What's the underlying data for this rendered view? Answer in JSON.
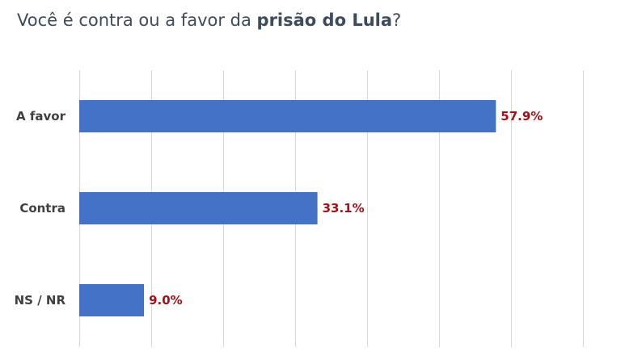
{
  "title": {
    "prefix": "Você é contra ou a favor da ",
    "bold": "prisão do Lula",
    "suffix": "?"
  },
  "colors": {
    "bar": "#4472c4",
    "data_label": "#a50f15",
    "category_label": "#404040",
    "title": "#3d4b5c",
    "gridline": "#d9d9d9"
  },
  "chart_data": {
    "type": "bar",
    "orientation": "horizontal",
    "title": "Você é contra ou a favor da prisão do Lula?",
    "categories": [
      "A favor",
      "Contra",
      "NS / NR"
    ],
    "values": [
      57.9,
      33.1,
      9.0
    ],
    "value_labels": [
      "57.9%",
      "33.1%",
      "9.0%"
    ],
    "xlabel": "",
    "ylabel": "",
    "xlim": [
      0,
      70
    ],
    "x_tick_step": 10,
    "x_tick_labels_visible": false,
    "grid": true,
    "legend": "none"
  }
}
